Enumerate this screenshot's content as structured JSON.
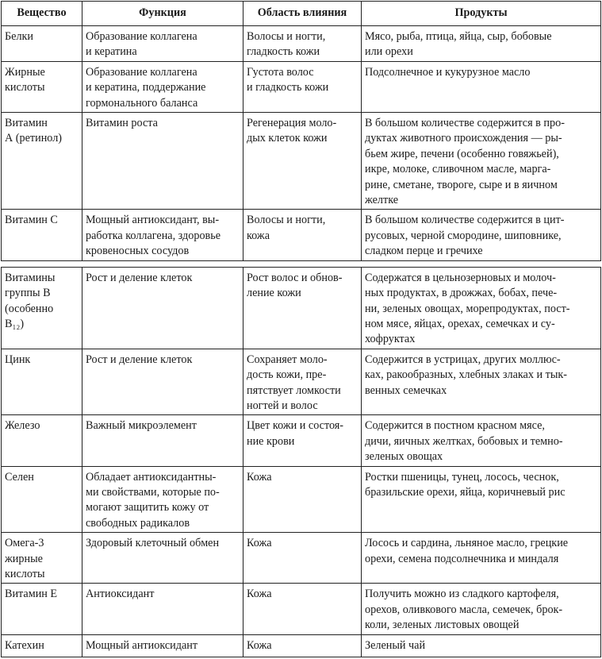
{
  "table": {
    "headers": [
      "Вещество",
      "Функция",
      "Область влияния",
      "Продукты"
    ],
    "part1": [
      [
        "Белки",
        "Образование коллагена\nи кератина",
        "Волосы и ногти,\nгладкость кожи",
        "Мясо, рыба, птица, яйца, сыр, бобовые\nили орехи"
      ],
      [
        "Жирные\nкислоты",
        "Образование коллагена\nи кератина, поддержание\nгормонального баланса",
        "Густота волос\nи гладкость кожи",
        "Подсолнечное и кукурузное масло"
      ],
      [
        "Витамин\nА (ретинол)",
        "Витамин роста",
        "Регенерация моло-\nдых клеток кожи",
        "В большом количестве содержится в про-\nдуктах животного происхождения — ры-\nбьем жире, печени (особенно говяжьей),\nикре, молоке, сливочном масле, марга-\nрине, сметане, твороге, сыре и в яичном\nжелтке"
      ],
      [
        "Витамин С",
        "Мощный антиоксидант, вы-\nработка коллагена, здоровье\nкровеносных сосудов",
        "Волосы и ногти,\nкожа",
        "В большом количестве содержится в цит-\nрусовых, черной смородине, шиповнике,\nсладком перце и гречихе"
      ]
    ],
    "part2": [
      [
        "Витамины\nгруппы В\n(особенно\nВ₁₂)",
        "Рост и деление клеток",
        "Рост волос и обнов-\nление кожи",
        "Содержатся в цельнозерновых и молоч-\nных продуктах, в дрожжах, бобах, пече-\nни, зеленых овощах, морепродуктах, пост-\nном мясе, яйцах, орехах, семечках и су-\nхофруктах"
      ],
      [
        "Цинк",
        "Рост и деление клеток",
        "Сохраняет моло-\nдость кожи, пре-\nпятствует ломкости\nногтей и волос",
        "Содержится в устрицах, других моллюс-\nках, ракообразных, хлебных злаках и тык-\nвенных семечках"
      ],
      [
        "Железо",
        "Важный микроэлемент",
        "Цвет кожи и состоя-\nние крови",
        "Содержится в постном красном мясе,\nдичи, яичных желтках, бобовых и темно-\nзеленых овощах"
      ],
      [
        "Селен",
        "Обладает антиоксидантны-\nми свойствами, которые по-\nмогают защитить кожу от\nсвободных радикалов",
        "Кожа",
        "Ростки пшеницы, тунец, лосось, чеснок,\nбразильские орехи, яйца, коричневый рис"
      ],
      [
        "Омега-3\nжирные\nкислоты",
        "Здоровый клеточный обмен",
        "Кожа",
        "Лосось и сардина, льняное масло, грецкие\nорехи, семена подсолнечника и миндаля"
      ],
      [
        "Витамин Е",
        "Антиоксидант",
        "Кожа",
        "Получить можно из сладкого картофеля,\nорехов, оливкового масла, семечек, брок-\nколи, зеленых листовых овощей"
      ],
      [
        "Катехин",
        "Мощный антиоксидант",
        "Кожа",
        "Зеленый чай"
      ]
    ]
  }
}
